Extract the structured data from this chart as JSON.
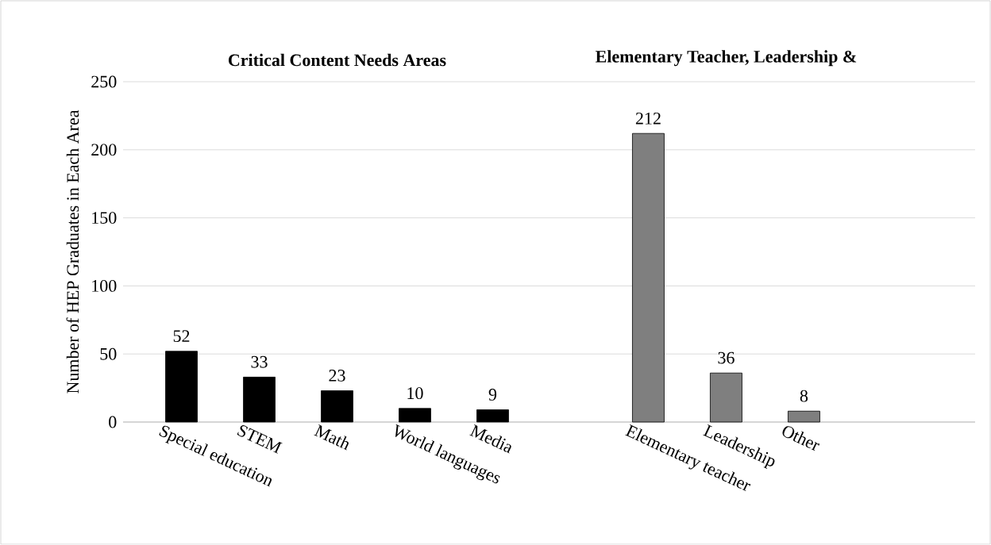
{
  "chart_data": {
    "type": "bar",
    "ylabel": "Number of HEP Graduates in Each Area",
    "annotations": [
      "Critical Content Needs Areas",
      "Elementary Teacher, Leadership &"
    ],
    "categories": [
      "Special education",
      "STEM",
      "Math",
      "World languages",
      "Media",
      null,
      "Elementary teacher",
      "Leadership",
      "Other"
    ],
    "series": [
      {
        "color": "#000000",
        "values": [
          52,
          33,
          23,
          10,
          9,
          null,
          null,
          null,
          null
        ]
      },
      {
        "color": "#7f7f7f",
        "values": [
          null,
          null,
          null,
          null,
          null,
          null,
          212,
          36,
          8
        ]
      }
    ],
    "ylim": [
      0,
      250
    ],
    "yticks": [
      0,
      50,
      100,
      150,
      200,
      250
    ],
    "grid": "y",
    "data_labels": true
  }
}
